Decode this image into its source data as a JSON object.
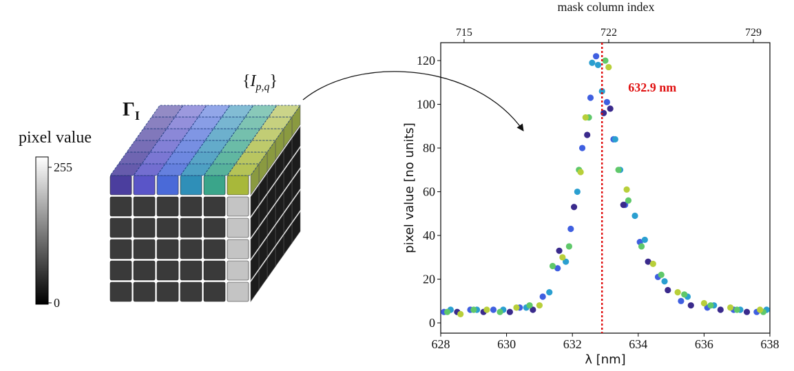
{
  "diagram": {
    "colorbar_label": "pixel value",
    "colorbar_ticks": [
      0,
      255
    ],
    "cube_label": {
      "symbol": "Γ",
      "subscript": "I"
    },
    "set_label": {
      "open": "{",
      "symbol": "I",
      "subscript": "p,q",
      "close": "}"
    }
  },
  "chart_data": {
    "type": "scatter",
    "title": "mask column index",
    "x_label": "λ [nm]",
    "y_label": "pixel value [no units]",
    "xlim": [
      628,
      638
    ],
    "xticks": [
      628,
      630,
      632,
      634,
      636,
      638
    ],
    "ylim": [
      -4.7,
      128.2
    ],
    "yticks": [
      0,
      20,
      40,
      60,
      80,
      100,
      120
    ],
    "x2lim": [
      713.87,
      729.8
    ],
    "x2ticks": [
      715,
      722,
      729
    ],
    "vline": {
      "value": 632.9,
      "label": "632.9 nm",
      "color": "#e01010"
    },
    "series": [
      {
        "color": "#3f5fe0",
        "x": [
          628.1,
          628.9,
          629.6,
          630.4,
          631.1,
          631.55,
          631.95,
          632.3,
          632.55,
          632.72,
          633.05,
          633.25,
          633.6,
          634.05,
          634.6,
          635.3,
          636.1,
          636.9,
          637.6
        ],
        "values": [
          5,
          6,
          6,
          7,
          12,
          25,
          43,
          80,
          103,
          122,
          101,
          84,
          54,
          37,
          21,
          10,
          7,
          6,
          5
        ]
      },
      {
        "color": "#3a2a8c",
        "x": [
          628.5,
          629.3,
          630.1,
          630.8,
          631.6,
          632.05,
          632.45,
          632.95,
          633.15,
          633.55,
          634.3,
          634.9,
          635.6,
          636.5,
          637.3
        ],
        "values": [
          5,
          5,
          5,
          6,
          33,
          53,
          86,
          96,
          98,
          54,
          28,
          15,
          8,
          6,
          5
        ]
      },
      {
        "color": "#2a9fd0",
        "x": [
          628.3,
          629.1,
          629.9,
          630.6,
          631.3,
          631.8,
          632.15,
          632.6,
          632.78,
          632.9,
          633.3,
          633.45,
          633.9,
          634.2,
          634.8,
          635.5,
          636.3,
          637.1,
          637.9
        ],
        "values": [
          6,
          6,
          6,
          7,
          14,
          28,
          60,
          119,
          118,
          106,
          84,
          70,
          49,
          38,
          19,
          12,
          8,
          6,
          6
        ]
      },
      {
        "color": "#5fc86a",
        "x": [
          628.2,
          629.0,
          629.8,
          630.7,
          631.4,
          631.9,
          632.2,
          632.5,
          633.0,
          633.4,
          633.7,
          634.1,
          634.7,
          635.4,
          636.2,
          637.0,
          637.8
        ],
        "values": [
          5,
          6,
          5,
          8,
          26,
          35,
          70,
          94,
          120,
          70,
          56,
          35,
          22,
          13,
          8,
          6,
          5
        ]
      },
      {
        "color": "#b8cf3a",
        "x": [
          628.6,
          629.4,
          630.3,
          631.0,
          631.7,
          632.25,
          632.4,
          633.1,
          633.65,
          634.45,
          635.2,
          636.0,
          636.8,
          637.7
        ],
        "values": [
          4,
          6,
          7,
          8,
          30,
          69,
          94,
          117,
          61,
          27,
          14,
          9,
          7,
          6
        ]
      }
    ]
  }
}
